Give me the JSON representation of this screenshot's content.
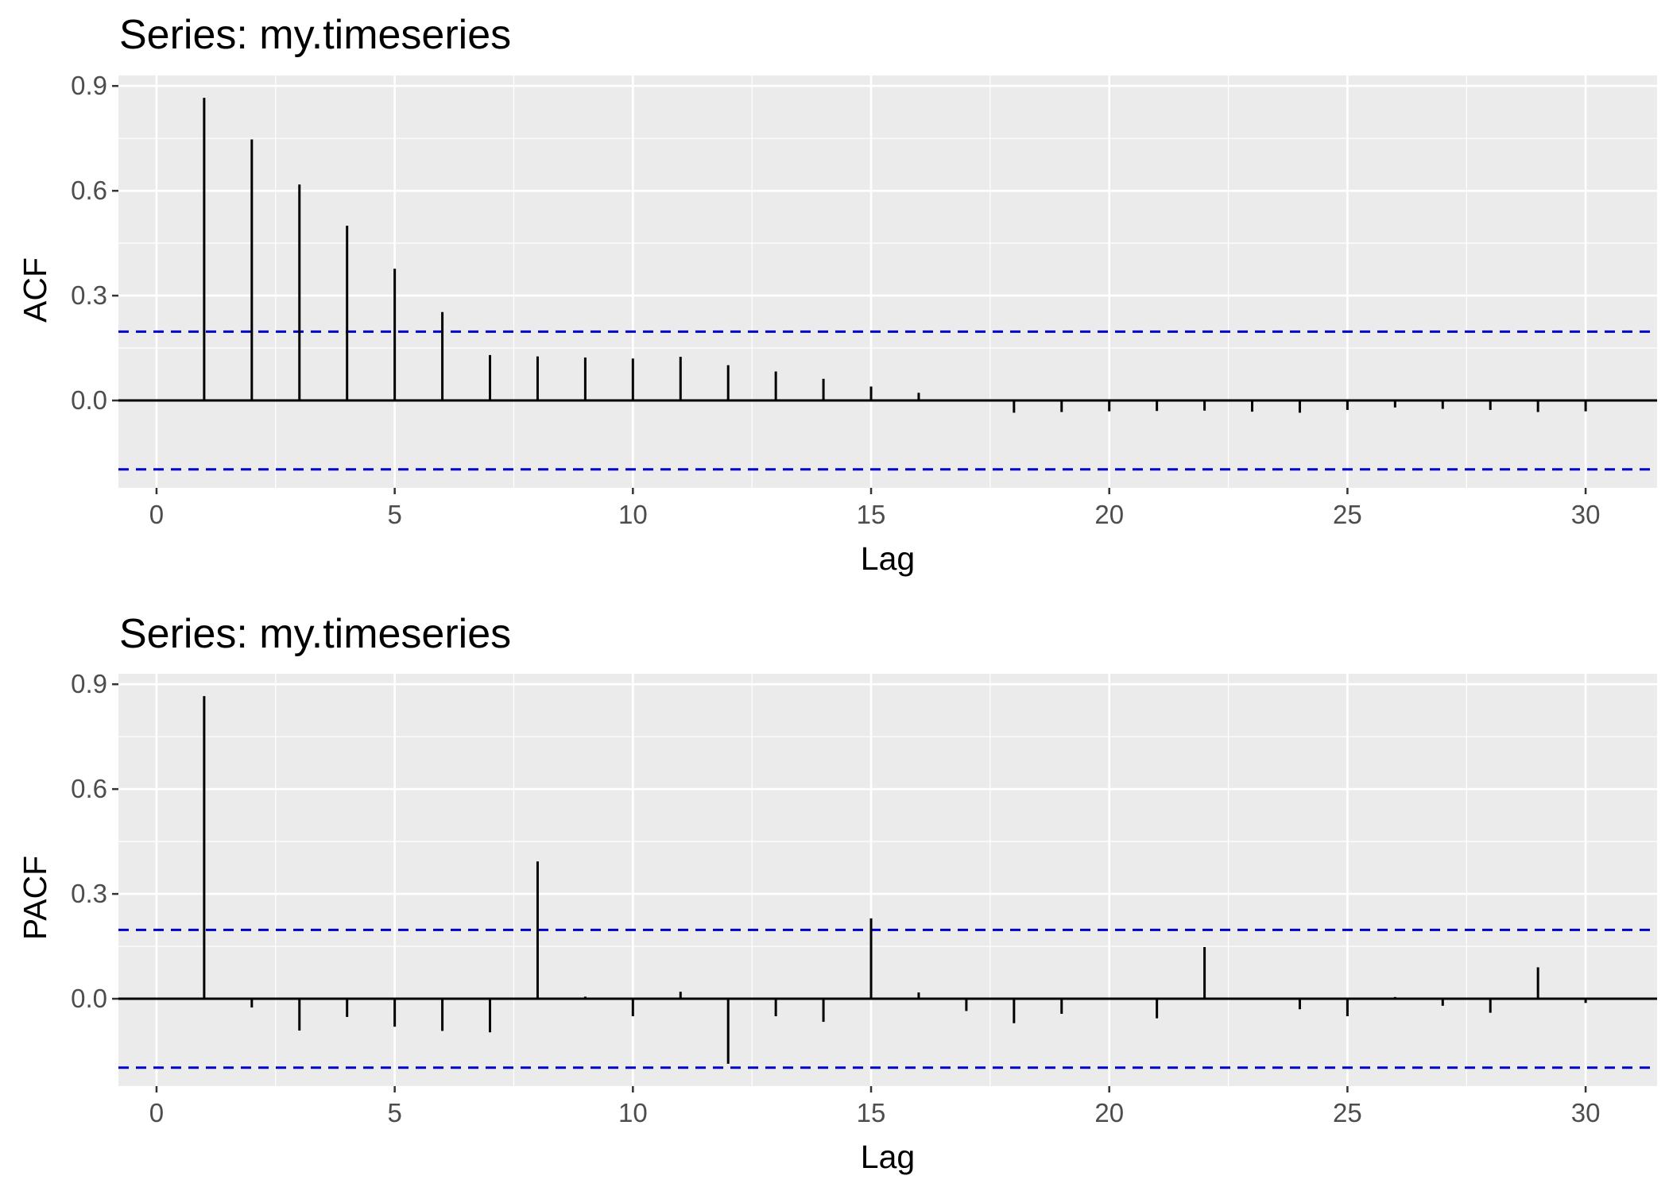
{
  "colors": {
    "panel_background": "#ebebeb",
    "major_grid": "#ffffff",
    "minor_grid": "#f5f5f5",
    "bar": "#000000",
    "confidence_line": "#0000cc",
    "tick_label": "#4d4d4d"
  },
  "chart_data": [
    {
      "type": "bar",
      "title": "Series: my.timeseries",
      "xlabel": "Lag",
      "ylabel": "ACF",
      "xlim": [
        -0.8,
        31.5
      ],
      "ylim": [
        -0.25,
        0.93
      ],
      "x_ticks": [
        0,
        5,
        10,
        15,
        20,
        25,
        30
      ],
      "x_tick_labels": [
        "0",
        "5",
        "10",
        "15",
        "20",
        "25",
        "30"
      ],
      "y_ticks": [
        0.0,
        0.3,
        0.6,
        0.9
      ],
      "y_tick_labels": [
        "0.0",
        "0.3",
        "0.6",
        "0.9"
      ],
      "confidence_bounds": [
        0.197,
        -0.197
      ],
      "grid": true,
      "x": [
        1,
        2,
        3,
        4,
        5,
        6,
        7,
        8,
        9,
        10,
        11,
        12,
        13,
        14,
        15,
        16,
        17,
        18,
        19,
        20,
        21,
        22,
        23,
        24,
        25,
        26,
        27,
        28,
        29,
        30
      ],
      "values": [
        0.866,
        0.747,
        0.618,
        0.5,
        0.377,
        0.253,
        0.13,
        0.126,
        0.123,
        0.12,
        0.125,
        0.101,
        0.083,
        0.062,
        0.04,
        0.022,
        0.0,
        -0.035,
        -0.033,
        -0.031,
        -0.03,
        -0.029,
        -0.032,
        -0.035,
        -0.027,
        -0.02,
        -0.024,
        -0.027,
        -0.033,
        -0.031
      ]
    },
    {
      "type": "bar",
      "title": "Series: my.timeseries",
      "xlabel": "Lag",
      "ylabel": "PACF",
      "xlim": [
        -0.8,
        31.5
      ],
      "ylim": [
        -0.25,
        0.93
      ],
      "x_ticks": [
        0,
        5,
        10,
        15,
        20,
        25,
        30
      ],
      "x_tick_labels": [
        "0",
        "5",
        "10",
        "15",
        "20",
        "25",
        "30"
      ],
      "y_ticks": [
        0.0,
        0.3,
        0.6,
        0.9
      ],
      "y_tick_labels": [
        "0.0",
        "0.3",
        "0.6",
        "0.9"
      ],
      "confidence_bounds": [
        0.197,
        -0.197
      ],
      "grid": true,
      "x": [
        1,
        2,
        3,
        4,
        5,
        6,
        7,
        8,
        9,
        10,
        11,
        12,
        13,
        14,
        15,
        16,
        17,
        18,
        19,
        20,
        21,
        22,
        23,
        24,
        25,
        26,
        27,
        28,
        29,
        30
      ],
      "values": [
        0.866,
        -0.025,
        -0.091,
        -0.052,
        -0.08,
        -0.092,
        -0.096,
        0.393,
        0.006,
        -0.05,
        0.02,
        -0.186,
        -0.05,
        -0.066,
        0.23,
        0.018,
        -0.035,
        -0.07,
        -0.043,
        0.0,
        -0.056,
        0.148,
        0.0,
        -0.03,
        -0.05,
        0.005,
        -0.02,
        -0.04,
        0.09,
        -0.012
      ]
    }
  ]
}
